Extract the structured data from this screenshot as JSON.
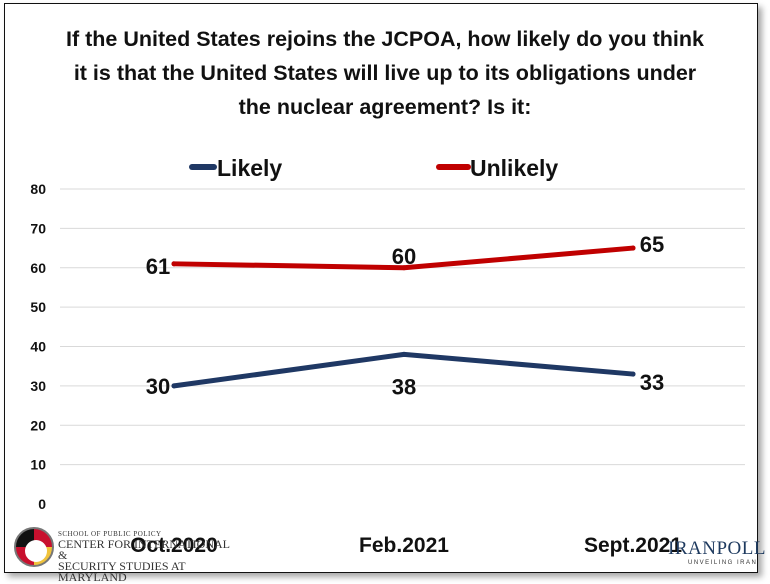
{
  "title_lines": [
    "If the United States rejoins the JCPOA, how likely do you think",
    "it is that the United States will live up to its obligations under",
    "the nuclear agreement? Is it:"
  ],
  "chart_data": {
    "type": "line",
    "categories": [
      "Oct.2020",
      "Feb.2021",
      "Sept.2021"
    ],
    "series": [
      {
        "name": "Likely",
        "values": [
          30,
          38,
          33
        ],
        "labels": [
          "30",
          "38",
          "33"
        ],
        "color": "#1f3864"
      },
      {
        "name": "Unlikely",
        "values": [
          61,
          60,
          65
        ],
        "labels": [
          "61",
          "60",
          "65"
        ],
        "color": "#c00000"
      }
    ],
    "ylim": [
      0,
      80
    ],
    "yticks": [
      "0",
      "10",
      "20",
      "30",
      "40",
      "50",
      "60",
      "70",
      "80"
    ],
    "grid": true,
    "legend": "top"
  },
  "logos": {
    "left_school": "SCHOOL OF PUBLIC POLICY",
    "left_center_1": "CENTER FOR INTERNATIONAL &",
    "left_center_2": "SECURITY STUDIES AT MARYLAND",
    "right_name": "IRANPOLL",
    "right_tagline": "UNVEILING IRAN"
  }
}
